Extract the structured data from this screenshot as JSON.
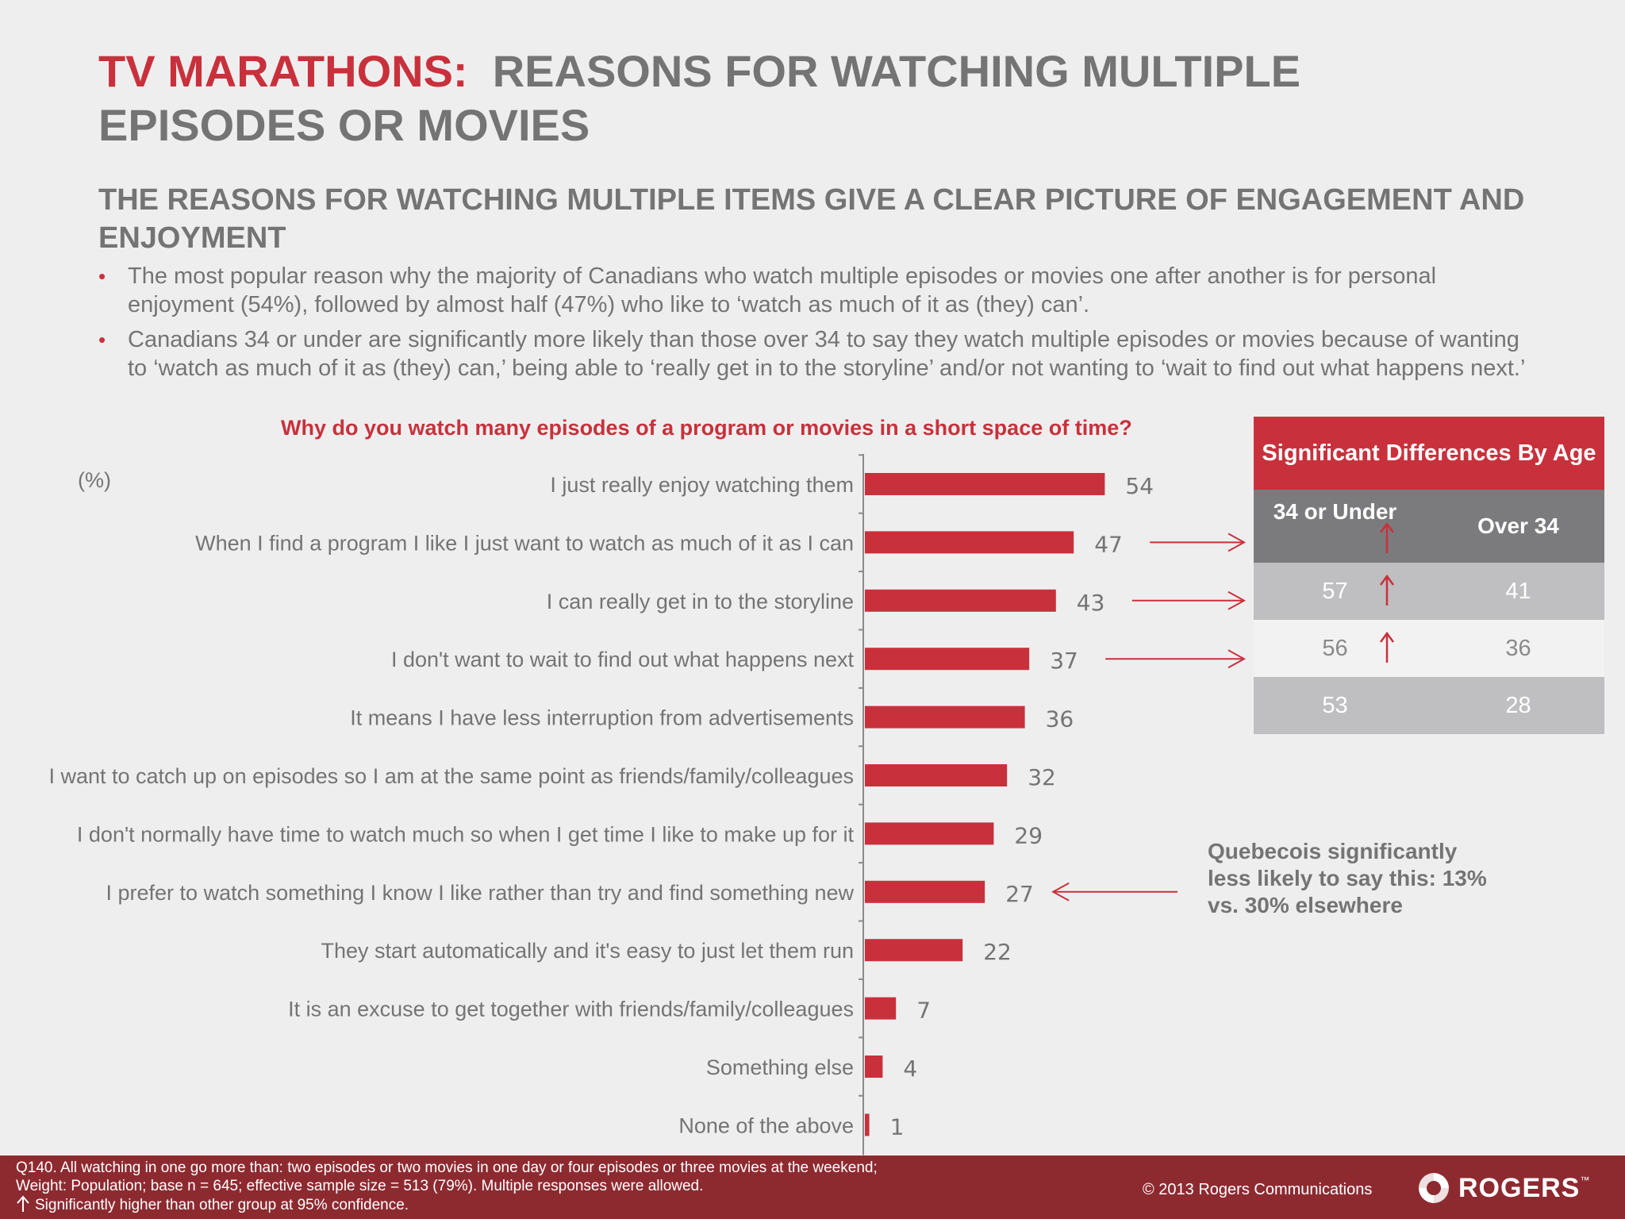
{
  "header": {
    "title_red": "TV MARATHONS:",
    "title_gray": "REASONS FOR WATCHING MULTIPLE EPISODES OR MOVIES",
    "subtitle": "THE REASONS FOR WATCHING MULTIPLE ITEMS GIVE A CLEAR PICTURE OF ENGAGEMENT AND ENJOYMENT"
  },
  "bullets": [
    "The most popular reason why the majority of Canadians who watch multiple episodes or movies one after another is for personal enjoyment (54%),  followed by almost half (47%) who like to ‘watch as much of it as (they) can’.",
    "Canadians 34 or under are significantly more likely than those over 34 to say they watch multiple episodes or movies because of wanting to ‘watch as much of it as (they) can,’ being able to ‘really get in to the storyline’ and/or not wanting to ‘wait to find out what happens next.’"
  ],
  "chart_data": {
    "type": "bar",
    "orientation": "horizontal",
    "title": "Why do you watch many episodes of a program or movies in a short space of time?",
    "unit_label": "(%)",
    "categories": [
      "I just really enjoy watching them",
      "When I find a program I like I just want to watch as much of it as I can",
      "I can really get in to the storyline",
      "I don't want to wait to find out what happens next",
      "It means I have less interruption from advertisements",
      "I want to catch up on episodes so I am at the same point as friends/family/colleagues",
      "I don't normally have time to watch much so when I get time I like to make up for it",
      "I prefer to watch something I know I like rather than try and find something new",
      "They start automatically and it's easy to just let them run",
      "It is an excuse to get together with friends/family/colleagues",
      "Something else",
      "None of the above"
    ],
    "values": [
      54,
      47,
      43,
      37,
      36,
      32,
      29,
      27,
      22,
      7,
      4,
      1
    ],
    "bar_color": "#c8313c",
    "xlim": [
      0,
      100
    ],
    "pointer_arrows_to_table": [
      1,
      2,
      3
    ],
    "pointer_arrow_from_note": 7
  },
  "sig_table": {
    "title": "Significant Differences By Age",
    "col_a": "34 or Under",
    "col_b": "Over 34",
    "rows": [
      {
        "a": "57",
        "b": "41",
        "higher": true
      },
      {
        "a": "56",
        "b": "36",
        "higher": true
      },
      {
        "a": "53",
        "b": "28",
        "higher": false
      }
    ]
  },
  "note": "Quebecois significantly less likely to say this: 13% vs. 30% elsewhere",
  "footer": {
    "footnote": "Q140. All watching in one go more than: two episodes or two movies in one day or four episodes or three movies at the weekend; Weight: Population; base n = 645; effective sample size = 513 (79%). Multiple responses were allowed.",
    "legend": "Significantly higher than other group at 95% confidence.",
    "copyright": "© 2013 Rogers Communications",
    "logo": "ROGERS",
    "logo_mark": "™"
  },
  "colors": {
    "accent": "#c8313c",
    "text": "#747474",
    "footer_bg": "#8d2a30"
  }
}
